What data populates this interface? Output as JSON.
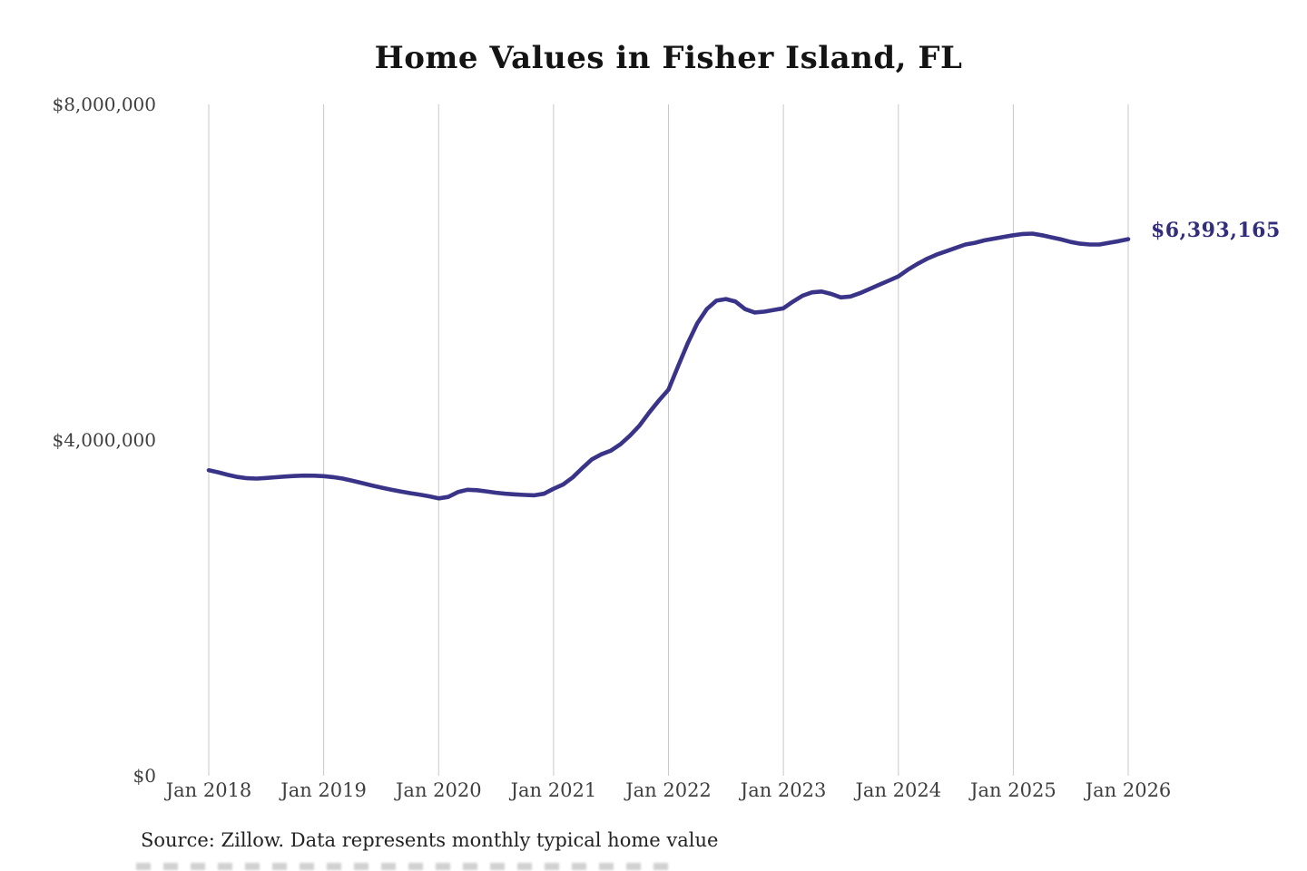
{
  "title": "Home Values in Fisher Island, FL",
  "annotation": {
    "label": "$6,393,165"
  },
  "source_note": "Source: Zillow. Data represents monthly typical home value",
  "colors": {
    "line": "#3a3489",
    "end_label": "#322e7c",
    "gridline": "#c9c9c9",
    "title": "#141414",
    "axis_labels": "#3f3f3f",
    "source": "#232323",
    "background": "#ffffff"
  },
  "y_axis": {
    "ticks": [
      {
        "label": "$0",
        "value": 0
      },
      {
        "label": "$4,000,000",
        "value": 4000000
      },
      {
        "label": "$8,000,000",
        "value": 8000000
      }
    ]
  },
  "x_axis": {
    "ticks": [
      {
        "label": "Jan 2018",
        "month_index": 0
      },
      {
        "label": "Jan 2019",
        "month_index": 12
      },
      {
        "label": "Jan 2020",
        "month_index": 24
      },
      {
        "label": "Jan 2021",
        "month_index": 36
      },
      {
        "label": "Jan 2022",
        "month_index": 48
      },
      {
        "label": "Jan 2023",
        "month_index": 60
      },
      {
        "label": "Jan 2024",
        "month_index": 72
      },
      {
        "label": "Jan 2025",
        "month_index": 84
      },
      {
        "label": "Jan 2026",
        "month_index": 96
      }
    ]
  },
  "chart_data": {
    "type": "line",
    "title": "Home Values in Fisher Island, FL",
    "xlabel": "",
    "ylabel": "",
    "ylim": [
      0,
      8000000
    ],
    "grid": "vertical-only",
    "legend": "none",
    "end_value": 6393165,
    "end_label": "$6,393,165",
    "x": [
      "2018-01",
      "2018-02",
      "2018-03",
      "2018-04",
      "2018-05",
      "2018-06",
      "2018-07",
      "2018-08",
      "2018-09",
      "2018-10",
      "2018-11",
      "2018-12",
      "2019-01",
      "2019-02",
      "2019-03",
      "2019-04",
      "2019-05",
      "2019-06",
      "2019-07",
      "2019-08",
      "2019-09",
      "2019-10",
      "2019-11",
      "2019-12",
      "2020-01",
      "2020-02",
      "2020-03",
      "2020-04",
      "2020-05",
      "2020-06",
      "2020-07",
      "2020-08",
      "2020-09",
      "2020-10",
      "2020-11",
      "2020-12",
      "2021-01",
      "2021-02",
      "2021-03",
      "2021-04",
      "2021-05",
      "2021-06",
      "2021-07",
      "2021-08",
      "2021-09",
      "2021-10",
      "2021-11",
      "2021-12",
      "2022-01",
      "2022-02",
      "2022-03",
      "2022-04",
      "2022-05",
      "2022-06",
      "2022-07",
      "2022-08",
      "2022-09",
      "2022-10",
      "2022-11",
      "2022-12",
      "2023-01",
      "2023-02",
      "2023-03",
      "2023-04",
      "2023-05",
      "2023-06",
      "2023-07",
      "2023-08",
      "2023-09",
      "2023-10",
      "2023-11",
      "2023-12",
      "2024-01",
      "2024-02",
      "2024-03",
      "2024-04",
      "2024-05",
      "2024-06",
      "2024-07",
      "2024-08",
      "2024-09",
      "2024-10",
      "2024-11",
      "2024-12",
      "2025-01",
      "2025-02",
      "2025-03",
      "2025-04",
      "2025-05",
      "2025-06",
      "2025-07",
      "2025-08",
      "2025-09",
      "2025-10",
      "2025-11",
      "2025-12",
      "2026-01"
    ],
    "values": [
      3640000,
      3615000,
      3585000,
      3560000,
      3545000,
      3540000,
      3548000,
      3557000,
      3565000,
      3572000,
      3576000,
      3575000,
      3570000,
      3558000,
      3540000,
      3515000,
      3488000,
      3460000,
      3434000,
      3410000,
      3388000,
      3368000,
      3350000,
      3330000,
      3305000,
      3322000,
      3380000,
      3408000,
      3402000,
      3388000,
      3372000,
      3360000,
      3352000,
      3346000,
      3342000,
      3360000,
      3420000,
      3470000,
      3555000,
      3665000,
      3770000,
      3830000,
      3875000,
      3950000,
      4055000,
      4175000,
      4330000,
      4470000,
      4600000,
      4880000,
      5150000,
      5390000,
      5560000,
      5660000,
      5680000,
      5650000,
      5560000,
      5520000,
      5530000,
      5550000,
      5570000,
      5650000,
      5720000,
      5760000,
      5770000,
      5740000,
      5700000,
      5710000,
      5750000,
      5800000,
      5850000,
      5900000,
      5950000,
      6030000,
      6100000,
      6160000,
      6210000,
      6250000,
      6290000,
      6330000,
      6350000,
      6380000,
      6400000,
      6420000,
      6440000,
      6455000,
      6460000,
      6440000,
      6415000,
      6390000,
      6360000,
      6340000,
      6330000,
      6330000,
      6350000,
      6370000,
      6393165
    ]
  }
}
